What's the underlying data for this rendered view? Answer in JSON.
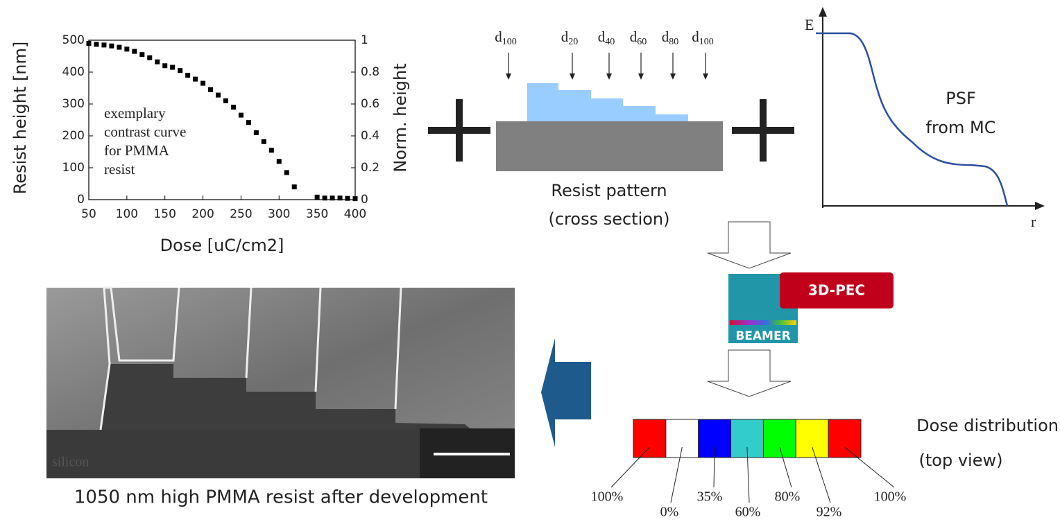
{
  "chart_data": {
    "type": "scatter",
    "x": [
      50,
      60,
      70,
      80,
      90,
      100,
      110,
      120,
      130,
      140,
      150,
      160,
      170,
      180,
      190,
      200,
      210,
      220,
      230,
      240,
      250,
      260,
      270,
      280,
      290,
      300,
      310,
      320,
      350,
      360,
      370,
      380,
      390,
      400
    ],
    "values": [
      490,
      487,
      485,
      482,
      478,
      472,
      465,
      455,
      445,
      432,
      420,
      415,
      405,
      390,
      378,
      365,
      345,
      328,
      310,
      290,
      265,
      242,
      210,
      182,
      155,
      120,
      85,
      40,
      8,
      5,
      5,
      5,
      4,
      3
    ],
    "color": "#000000",
    "xlim": [
      50,
      400
    ],
    "xticks": [
      50,
      100,
      150,
      200,
      250,
      300,
      350,
      400
    ],
    "ylim": [
      0,
      500
    ],
    "yticks": [
      0,
      100,
      200,
      300,
      400,
      500
    ],
    "y2lim": [
      0,
      1
    ],
    "y2ticks": [
      0,
      0.2,
      0.4,
      0.6,
      0.8,
      1
    ],
    "x_label": "Dose [uC/cm2]",
    "y_label": "Resist height [nm]",
    "y2_label": "Norm. height",
    "annotation": [
      "exemplary",
      "contrast curve",
      "for PMMA",
      "resist"
    ]
  },
  "resist_pattern": {
    "arrows": [
      {
        "base": "d",
        "sub": "100"
      },
      {
        "base": "d",
        "sub": "20"
      },
      {
        "base": "d",
        "sub": "40"
      },
      {
        "base": "d",
        "sub": "60"
      },
      {
        "base": "d",
        "sub": "80"
      },
      {
        "base": "d",
        "sub": "100"
      }
    ],
    "caption": [
      "Resist pattern",
      "(cross section)"
    ]
  },
  "psf": {
    "y_axis": "E",
    "x_axis": "r",
    "label": [
      "PSF",
      "from MC"
    ]
  },
  "logo": {
    "product": "3D-PEC",
    "brand": "BEAMER"
  },
  "sem": {
    "substrate": "silicon",
    "caption": "1050 nm high PMMA resist after development"
  },
  "dose": {
    "title": [
      "Dose distribution",
      "(top view)"
    ],
    "cells": [
      {
        "color": "#ff0000",
        "label": "100%"
      },
      {
        "color": "#ffffff",
        "label": "0%"
      },
      {
        "color": "#0000ff",
        "label": "35%"
      },
      {
        "color": "#33cccc",
        "label": "60%"
      },
      {
        "color": "#00ff00",
        "label": "80%"
      },
      {
        "color": "#ffff00",
        "label": "92%"
      },
      {
        "color": "#ff0000",
        "label": "100%"
      }
    ]
  }
}
